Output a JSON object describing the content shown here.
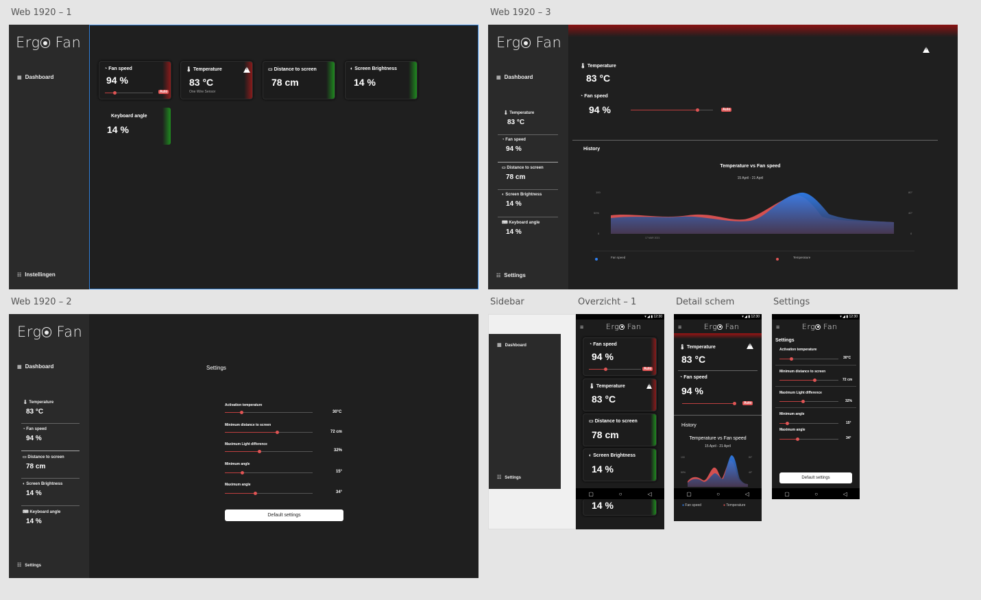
{
  "artboards": {
    "web1": "Web 1920 – 1",
    "web3": "Web 1920 – 3",
    "web2": "Web 1920 – 2",
    "sidebar": "Sidebar",
    "overzicht": "Overzicht – 1",
    "detail": "Detail schem",
    "settings": "Settings"
  },
  "app": {
    "logo_left": "Erg",
    "logo_right": "Fan"
  },
  "nav": {
    "dashboard": "Dashboard",
    "instellingen": "Instellingen",
    "settings": "Settings"
  },
  "cards": {
    "fan_label": "Fan speed",
    "fan_value": "94 %",
    "auto": "Auto",
    "temp_label": "Temperature",
    "temp_value": "83 °C",
    "temp_sub": "One Wire Sensor",
    "dist_label": "Distance to screen",
    "dist_value": "78 cm",
    "bright_label": "Screen Brightness",
    "bright_value": "14 %",
    "kb_label": "Keyboard angle",
    "kb_value": "14 %"
  },
  "fan_level": 0.2,
  "detail": {
    "temp_label": "Temperature",
    "temp_value": "83 °C",
    "fan_label": "Fan speed",
    "fan_value": "94 %",
    "history": "History",
    "chart_title": "Temperature vs Fan speed",
    "chart_sub": "15 April - 21 April",
    "legend_fan": "Fan speed",
    "legend_temp": "Temperature",
    "y_left": [
      "100",
      "50%",
      "0"
    ],
    "y_right": [
      "80°",
      "40°",
      "0"
    ],
    "x_label": "17 MAR 2021"
  },
  "settings": {
    "title": "Settings",
    "activation_label": "Activation temperature",
    "activation_value": "30°C",
    "min_dist_label": "Minimum distance to screen",
    "min_dist_value": "72 cm",
    "max_light_label": "Maximum Light difference",
    "max_light_value": "32%",
    "min_angle_label": "Minimum angle",
    "min_angle_value": "15°",
    "max_angle_label": "Maximum angle",
    "max_angle_value": "34°",
    "default_button": "Default settings"
  },
  "phone": {
    "time": "12:30"
  },
  "colors": {
    "fan": "#2f7ff0",
    "temp": "#e05555",
    "accent_red": "#8a1b1b",
    "accent_green": "#1f8a1f"
  }
}
